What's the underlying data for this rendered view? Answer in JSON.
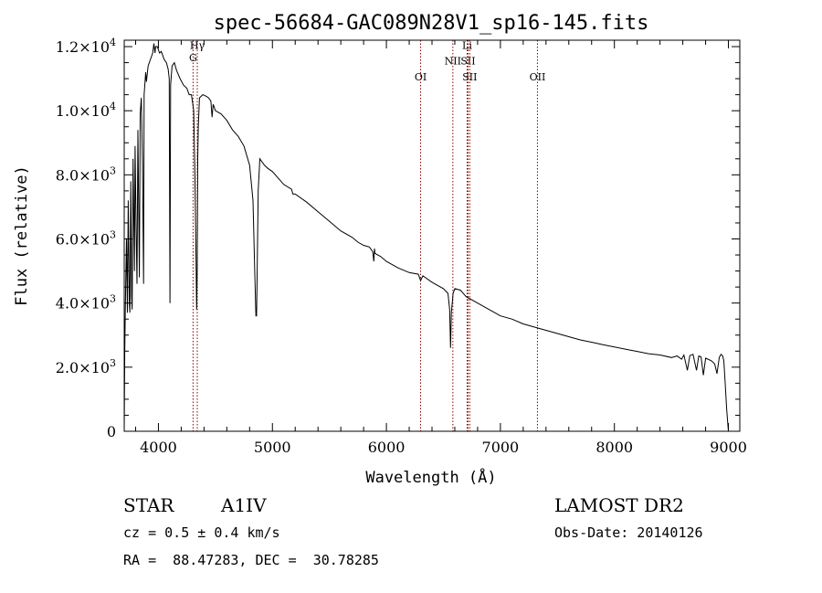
{
  "chart_data": {
    "type": "line",
    "title": "spec-56684-GAC089N28V1_sp16-145.fits",
    "xlabel": "Wavelength (Å)",
    "ylabel": "Flux (relative)",
    "xlim": [
      3700,
      9100
    ],
    "ylim": [
      0,
      12200
    ],
    "xticks": [
      4000,
      5000,
      6000,
      7000,
      8000,
      9000
    ],
    "xtick_labels": [
      "4000",
      "5000",
      "6000",
      "7000",
      "8000",
      "9000"
    ],
    "yticks": [
      {
        "value": 0,
        "mantissa": "0",
        "exponent": ""
      },
      {
        "value": 2000,
        "mantissa": "2.0×10",
        "exponent": "3"
      },
      {
        "value": 4000,
        "mantissa": "4.0×10",
        "exponent": "3"
      },
      {
        "value": 6000,
        "mantissa": "6.0×10",
        "exponent": "3"
      },
      {
        "value": 8000,
        "mantissa": "8.0×10",
        "exponent": "3"
      },
      {
        "value": 10000,
        "mantissa": "1.0×10",
        "exponent": "4"
      },
      {
        "value": 12000,
        "mantissa": "1.2×10",
        "exponent": "4"
      }
    ],
    "grid": false,
    "series": [
      {
        "name": "spectrum",
        "color": "#000000",
        "x": [
          3700,
          3705,
          3710,
          3715,
          3720,
          3728,
          3735,
          3745,
          3750,
          3758,
          3765,
          3770,
          3778,
          3790,
          3795,
          3805,
          3812,
          3820,
          3833,
          3840,
          3850,
          3860,
          3870,
          3875,
          3888,
          3895,
          3910,
          3930,
          3950,
          3960,
          3970,
          3976,
          3990,
          4010,
          4025,
          4050,
          4070,
          4085,
          4095,
          4101,
          4107,
          4120,
          4140,
          4160,
          4190,
          4220,
          4250,
          4270,
          4290,
          4310,
          4320,
          4330,
          4335,
          4340,
          4345,
          4350,
          4360,
          4390,
          4420,
          4440,
          4460,
          4471,
          4480,
          4500,
          4550,
          4600,
          4650,
          4700,
          4750,
          4800,
          4830,
          4845,
          4855,
          4861,
          4866,
          4875,
          4890,
          4910,
          4930,
          4960,
          5000,
          5100,
          5168,
          5180,
          5200,
          5300,
          5400,
          5500,
          5600,
          5700,
          5750,
          5800,
          5850,
          5880,
          5890,
          5895,
          5900,
          5950,
          6000,
          6100,
          6200,
          6280,
          6300,
          6320,
          6400,
          6500,
          6540,
          6555,
          6563,
          6570,
          6585,
          6600,
          6650,
          6700,
          6800,
          6900,
          7000,
          7100,
          7200,
          7300,
          7400,
          7500,
          7600,
          7700,
          7800,
          7900,
          8000,
          8100,
          8200,
          8300,
          8400,
          8500,
          8550,
          8590,
          8610,
          8640,
          8662,
          8690,
          8720,
          8740,
          8760,
          8780,
          8800,
          8850,
          8880,
          8900,
          8920,
          8935,
          8950,
          8960,
          8970,
          8985,
          9000
        ],
        "y": [
          0,
          2500,
          3800,
          5000,
          6000,
          3700,
          7200,
          4000,
          3700,
          7800,
          4200,
          3800,
          8500,
          5000,
          8900,
          6200,
          4600,
          9400,
          4800,
          9900,
          10400,
          8400,
          4600,
          10500,
          11200,
          10900,
          11400,
          11600,
          11800,
          12100,
          11800,
          12000,
          12000,
          11800,
          11850,
          11600,
          11500,
          11300,
          11000,
          4000,
          10800,
          11400,
          11500,
          11250,
          11000,
          10800,
          10700,
          10500,
          10500,
          10000,
          8000,
          5500,
          3800,
          5000,
          8500,
          9500,
          10400,
          10500,
          10450,
          10400,
          10300,
          9800,
          10200,
          10000,
          9900,
          9700,
          9400,
          9200,
          8900,
          8300,
          7200,
          5000,
          3600,
          3600,
          4800,
          7500,
          8500,
          8400,
          8300,
          8200,
          8100,
          7700,
          7550,
          7400,
          7400,
          7150,
          6850,
          6550,
          6250,
          6050,
          5900,
          5800,
          5750,
          5600,
          5300,
          5700,
          5550,
          5450,
          5300,
          5100,
          4950,
          4900,
          4700,
          4850,
          4650,
          4450,
          4300,
          3800,
          2600,
          3700,
          4300,
          4450,
          4400,
          4200,
          4000,
          3800,
          3600,
          3500,
          3350,
          3250,
          3150,
          3050,
          2950,
          2850,
          2780,
          2700,
          2630,
          2560,
          2490,
          2420,
          2380,
          2300,
          2350,
          2250,
          2380,
          1900,
          2360,
          2400,
          1900,
          2350,
          2320,
          1750,
          2280,
          2200,
          2100,
          1800,
          2300,
          2400,
          2350,
          2200,
          1600,
          700,
          0
        ]
      }
    ],
    "lines": [
      {
        "x": 4304,
        "label": "G",
        "label_flux": 11550
      },
      {
        "x": 4341,
        "label": "Hγ",
        "label_flux": 11930
      },
      {
        "x": 6300,
        "label": "OI",
        "label_flux": 10950
      },
      {
        "x": 6583,
        "label": "NII",
        "label_flux": 11450
      },
      {
        "x": 6708,
        "label": "Li",
        "label_flux": 11930
      },
      {
        "x": 6716,
        "label": "SII",
        "label_flux": 11450
      },
      {
        "x": 6731,
        "label": "SII",
        "label_flux": 10950
      },
      {
        "x": 7325,
        "label": "OII",
        "label_flux": 10950
      }
    ],
    "line_color": "#8b0000"
  },
  "info": {
    "object_class": "STAR",
    "subclass": "A1IV",
    "survey": "LAMOST DR2",
    "redshift": "cz = 0.5 ± 0.4 km/s",
    "obs_date": "Obs-Date: 20140126",
    "coords": "RA =  88.47283, DEC =  30.78285"
  }
}
